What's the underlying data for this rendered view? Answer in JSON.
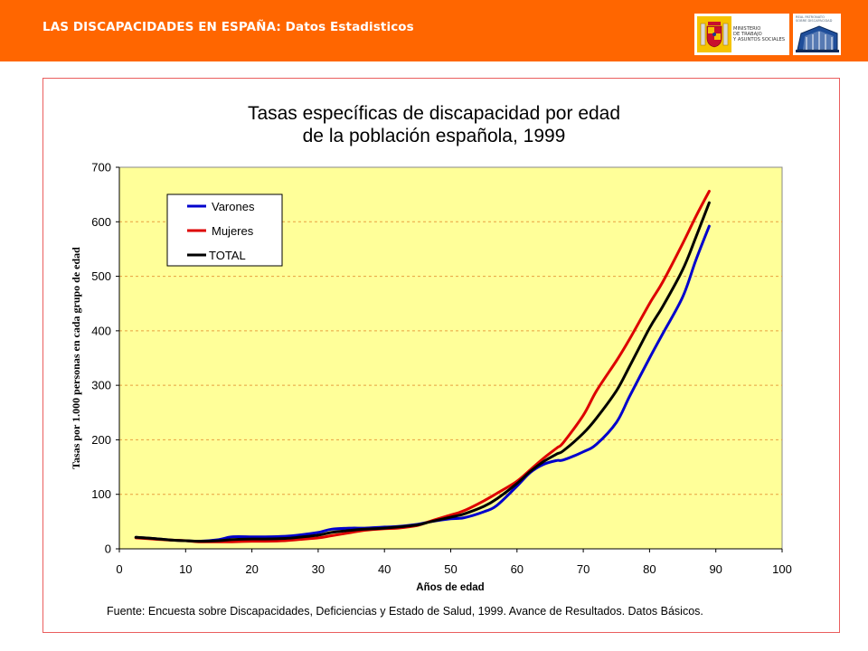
{
  "header": {
    "title": "LAS DISCAPACIDADES EN ESPAÑA: Datos Estadisticos",
    "logo_ministerio_text": [
      "MINISTERIO",
      "DE TRABAJO",
      "Y ASUNTOS SOCIALES"
    ],
    "logo_real_text": [
      "REAL PATRONATO",
      "SOBRE DISCAPACIDAD"
    ]
  },
  "colors": {
    "header_bg": "#ff6600",
    "plot_bg": "#ffff99",
    "varones": "#0000cc",
    "mujeres": "#dd0000",
    "total": "#000000",
    "grid": "#e8a040",
    "frame": "#ea5e5e"
  },
  "chart_data": {
    "type": "line",
    "title": "Tasas específicas de discapacidad por edad de la población española, 1999",
    "title_lines": [
      "Tasas específicas de discapacidad por edad",
      "de la población española, 1999"
    ],
    "xlabel": "Años de edad",
    "ylabel": "Tasas por 1.000 personas en cada grupo de edad",
    "xlim": [
      0,
      100
    ],
    "ylim": [
      0,
      700
    ],
    "xticks": [
      0,
      10,
      20,
      30,
      40,
      50,
      60,
      70,
      80,
      90,
      100
    ],
    "yticks": [
      0,
      100,
      200,
      300,
      400,
      500,
      600,
      700
    ],
    "grid": "horizontal dashed",
    "legend_position": "top-left",
    "series": [
      {
        "name": "Varones",
        "color": "#0000cc",
        "x": [
          2.5,
          5,
          8,
          10,
          12,
          15,
          17,
          20,
          22,
          25,
          27,
          30,
          32,
          35,
          37,
          40,
          42,
          45,
          47,
          50,
          52,
          55,
          57,
          60,
          62,
          64,
          66,
          67,
          70,
          72,
          75,
          77,
          80,
          82,
          85,
          87,
          89
        ],
        "values": [
          21,
          19,
          16,
          15,
          14,
          17,
          22,
          22,
          22,
          23,
          25,
          30,
          36,
          38,
          38,
          40,
          41,
          45,
          50,
          55,
          57,
          68,
          80,
          115,
          140,
          155,
          162,
          163,
          178,
          192,
          232,
          280,
          350,
          395,
          462,
          530,
          592
        ]
      },
      {
        "name": "Mujeres",
        "color": "#dd0000",
        "x": [
          2.5,
          5,
          8,
          10,
          12,
          15,
          17,
          20,
          22,
          25,
          27,
          30,
          32,
          35,
          37,
          40,
          42,
          45,
          47,
          50,
          52,
          55,
          57,
          60,
          62,
          64,
          66,
          67,
          70,
          72,
          75,
          77,
          80,
          82,
          85,
          87,
          89
        ],
        "values": [
          20,
          18,
          16,
          15,
          13,
          13,
          13,
          14,
          14,
          15,
          17,
          20,
          24,
          30,
          34,
          37,
          38,
          43,
          51,
          62,
          70,
          88,
          102,
          124,
          145,
          166,
          185,
          195,
          245,
          290,
          345,
          385,
          450,
          490,
          560,
          610,
          656
        ]
      },
      {
        "name": "TOTAL",
        "color": "#000000",
        "x": [
          2.5,
          5,
          8,
          10,
          12,
          15,
          17,
          20,
          22,
          25,
          27,
          30,
          32,
          35,
          37,
          40,
          42,
          45,
          47,
          50,
          52,
          55,
          57,
          60,
          62,
          64,
          66,
          67,
          70,
          72,
          75,
          77,
          80,
          82,
          85,
          87,
          89
        ],
        "values": [
          21,
          19,
          16,
          15,
          14,
          15,
          17,
          18,
          18,
          19,
          21,
          25,
          30,
          34,
          36,
          38,
          40,
          44,
          50,
          58,
          64,
          78,
          92,
          120,
          142,
          160,
          174,
          180,
          212,
          240,
          290,
          335,
          405,
          445,
          512,
          572,
          635
        ]
      }
    ]
  },
  "footer": {
    "source": "Fuente: Encuesta sobre Discapacidades, Deficiencias y Estado de Salud, 1999. Avance de Resultados. Datos Básicos."
  }
}
